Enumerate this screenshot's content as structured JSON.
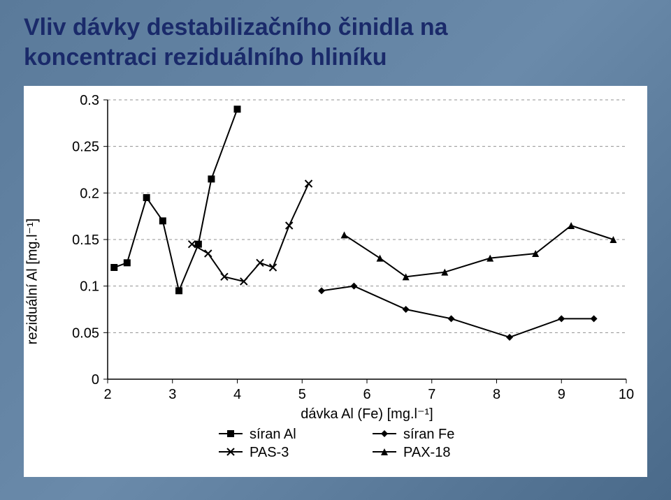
{
  "title_line1": "Vliv dávky destabilizačního činidla na",
  "title_line2": "koncentraci reziduálního hliníku",
  "title_color": "#1a2a6a",
  "background_gradient_from": "#5a7a9a",
  "background_gradient_to": "#4a6a8a",
  "chart": {
    "type": "line-scatter",
    "background_color": "#ffffff",
    "plot_border_color": "#000000",
    "grid_color": "#909090",
    "grid_dash": "4,4",
    "axis_fontsize": 20,
    "tick_fontsize": 20,
    "x": {
      "min": 2,
      "max": 10,
      "ticks": [
        2,
        3,
        4,
        5,
        6,
        7,
        8,
        9,
        10
      ],
      "label": "dávka Al (Fe) [mg.l⁻¹]"
    },
    "y": {
      "min": 0,
      "max": 0.3,
      "ticks": [
        0,
        0.05,
        0.1,
        0.15,
        0.2,
        0.25,
        0.3
      ],
      "tick_labels": [
        "0",
        "0.05",
        "0.1",
        "0.15",
        "0.2",
        "0.25",
        "0.3"
      ],
      "label": "reziduální Al [mg.l⁻¹]"
    },
    "series": [
      {
        "name": "síran Al",
        "marker": "square-filled",
        "color": "#000000",
        "line": true,
        "data": [
          {
            "x": 2.1,
            "y": 0.12
          },
          {
            "x": 2.3,
            "y": 0.125
          },
          {
            "x": 2.6,
            "y": 0.195
          },
          {
            "x": 2.85,
            "y": 0.17
          },
          {
            "x": 3.1,
            "y": 0.095
          },
          {
            "x": 3.4,
            "y": 0.145
          },
          {
            "x": 3.6,
            "y": 0.215
          },
          {
            "x": 4.0,
            "y": 0.29
          }
        ]
      },
      {
        "name": "síran Fe",
        "marker": "diamond-filled",
        "color": "#000000",
        "line": true,
        "data": [
          {
            "x": 5.3,
            "y": 0.095
          },
          {
            "x": 5.8,
            "y": 0.1
          },
          {
            "x": 6.6,
            "y": 0.075
          },
          {
            "x": 7.3,
            "y": 0.065
          },
          {
            "x": 8.2,
            "y": 0.045
          },
          {
            "x": 9.0,
            "y": 0.065
          },
          {
            "x": 9.5,
            "y": 0.065
          }
        ]
      },
      {
        "name": "PAS-3",
        "marker": "x",
        "color": "#000000",
        "line": true,
        "data": [
          {
            "x": 3.3,
            "y": 0.145
          },
          {
            "x": 3.55,
            "y": 0.135
          },
          {
            "x": 3.8,
            "y": 0.11
          },
          {
            "x": 4.1,
            "y": 0.105
          },
          {
            "x": 4.35,
            "y": 0.125
          },
          {
            "x": 4.55,
            "y": 0.12
          },
          {
            "x": 4.8,
            "y": 0.165
          },
          {
            "x": 5.1,
            "y": 0.21
          }
        ]
      },
      {
        "name": "PAX-18",
        "marker": "triangle-filled",
        "color": "#000000",
        "line": true,
        "data": [
          {
            "x": 5.65,
            "y": 0.155
          },
          {
            "x": 6.2,
            "y": 0.13
          },
          {
            "x": 6.6,
            "y": 0.11
          },
          {
            "x": 7.2,
            "y": 0.115
          },
          {
            "x": 7.9,
            "y": 0.13
          },
          {
            "x": 8.6,
            "y": 0.135
          },
          {
            "x": 9.15,
            "y": 0.165
          },
          {
            "x": 9.8,
            "y": 0.15
          }
        ]
      }
    ],
    "legend": {
      "items": [
        {
          "label": "síran Al",
          "marker": "square-filled"
        },
        {
          "label": "síran Fe",
          "marker": "diamond-filled"
        },
        {
          "label": "PAS-3",
          "marker": "x"
        },
        {
          "label": "PAX-18",
          "marker": "triangle-filled"
        }
      ],
      "fontsize": 20,
      "columns": 2
    },
    "line_width": 2,
    "marker_size": 10
  }
}
